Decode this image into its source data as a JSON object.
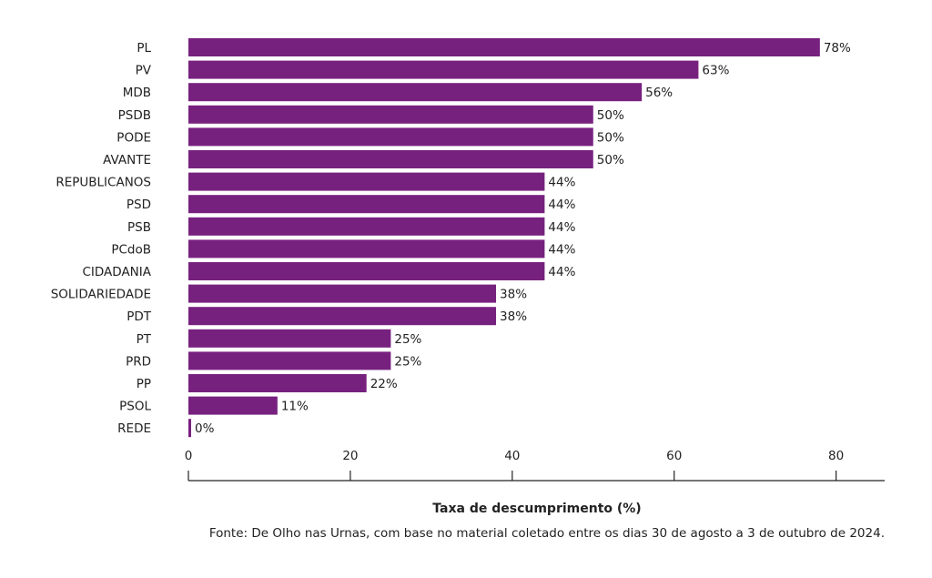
{
  "chart_data": {
    "type": "bar",
    "orientation": "horizontal",
    "categories": [
      "PL",
      "PV",
      "MDB",
      "PSDB",
      "PODE",
      "AVANTE",
      "REPUBLICANOS",
      "PSD",
      "PSB",
      "PCdoB",
      "CIDADANIA",
      "SOLIDARIEDADE",
      "PDT",
      "PT",
      "PRD",
      "PP",
      "PSOL",
      "REDE"
    ],
    "values": [
      78,
      63,
      56,
      50,
      50,
      50,
      44,
      44,
      44,
      44,
      44,
      38,
      38,
      25,
      25,
      22,
      11,
      0
    ],
    "value_labels": [
      "78%",
      "63%",
      "56%",
      "50%",
      "50%",
      "50%",
      "44%",
      "44%",
      "44%",
      "44%",
      "44%",
      "38%",
      "38%",
      "25%",
      "25%",
      "22%",
      "11%",
      "0%"
    ],
    "xlabel": "Taxa de descumprimento (%)",
    "xlim": [
      0,
      86
    ],
    "xticks": [
      0,
      20,
      40,
      60,
      80
    ],
    "grid": false,
    "bar_color": "#77217f",
    "source": "Fonte: De Olho nas Urnas, com base no material coletado entre os dias 30 de agosto a 3 de outubro de 2024."
  }
}
